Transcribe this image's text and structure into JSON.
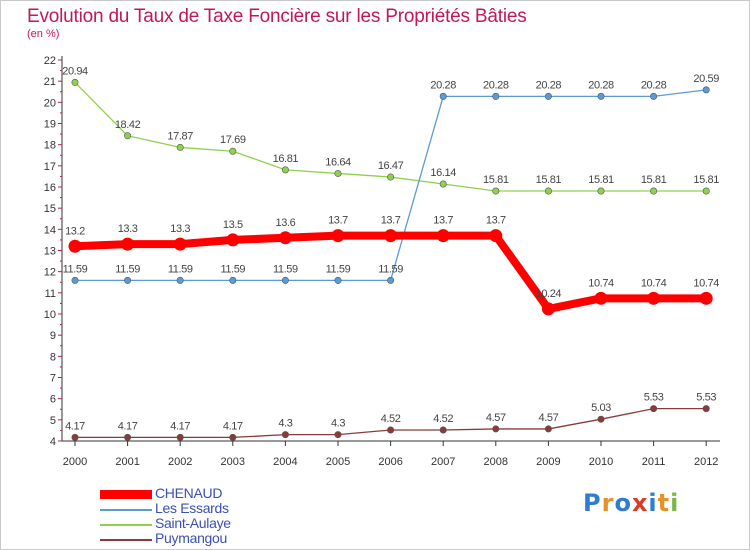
{
  "title": "Evolution du Taux de Taxe Foncière sur les Propriétés Bâties",
  "subtitle": "(en %)",
  "logo": {
    "text": "Proxiti",
    "letters": [
      "P",
      "r",
      "o",
      "x",
      "i",
      "t",
      "i"
    ],
    "colors": [
      "#2e7dd1",
      "#e8902a",
      "#2e7dd1",
      "#d93a2a",
      "#2e7dd1",
      "#e8902a",
      "#7ab648"
    ]
  },
  "chart_data": {
    "type": "line",
    "title": "Evolution du Taux de Taxe Foncière sur les Propriétés Bâties",
    "ylabel": "(en %)",
    "xlabel": "",
    "x": [
      "2000",
      "2001",
      "2002",
      "2003",
      "2004",
      "2005",
      "2006",
      "2007",
      "2008",
      "2009",
      "2010",
      "2011",
      "2012"
    ],
    "ylim": [
      4,
      22
    ],
    "yticks": [
      "4",
      "5",
      "6",
      "7",
      "8",
      "9",
      "10",
      "11",
      "12",
      "13",
      "14",
      "15",
      "16",
      "17",
      "18",
      "19",
      "20",
      "21",
      "22"
    ],
    "grid": false,
    "legend_position": "bottom-left",
    "series": [
      {
        "name": "CHENAUD",
        "color": "#ff0000",
        "width": "thick",
        "values": [
          13.2,
          13.3,
          13.3,
          13.5,
          13.6,
          13.7,
          13.7,
          13.7,
          13.7,
          10.24,
          10.74,
          10.74,
          10.74
        ],
        "labels": [
          "13.2",
          "13.3",
          "13.3",
          "13.5",
          "13.6",
          "13.7",
          "13.7",
          "13.7",
          "13.7",
          "10.24",
          "10.74",
          "10.74",
          "10.74"
        ]
      },
      {
        "name": "Les Essards",
        "color": "#5b9bd5",
        "width": "thin",
        "values": [
          11.59,
          11.59,
          11.59,
          11.59,
          11.59,
          11.59,
          11.59,
          20.28,
          20.28,
          20.28,
          20.28,
          20.28,
          20.59
        ],
        "labels": [
          "11.59",
          "11.59",
          "11.59",
          "11.59",
          "11.59",
          "11.59",
          "11.59",
          "20.28",
          "20.28",
          "20.28",
          "20.28",
          "20.28",
          "20.59"
        ]
      },
      {
        "name": "Saint-Aulaye",
        "color": "#8fd14f",
        "width": "thin",
        "values": [
          20.94,
          18.42,
          17.87,
          17.69,
          16.81,
          16.64,
          16.47,
          16.14,
          15.81,
          15.81,
          15.81,
          15.81,
          15.81
        ],
        "labels": [
          "20.94",
          "18.42",
          "17.87",
          "17.69",
          "16.81",
          "16.64",
          "16.47",
          "16.14",
          "15.81",
          "15.81",
          "15.81",
          "15.81",
          "15.81"
        ]
      },
      {
        "name": "Puymangou",
        "color": "#8b3a3a",
        "width": "thin",
        "values": [
          4.17,
          4.17,
          4.17,
          4.17,
          4.3,
          4.3,
          4.52,
          4.52,
          4.57,
          4.57,
          5.03,
          5.53,
          5.53
        ],
        "labels": [
          "4.17",
          "4.17",
          "4.17",
          "4.17",
          "4.3",
          "4.3",
          "4.52",
          "4.52",
          "4.57",
          "4.57",
          "5.03",
          "5.53",
          "5.53"
        ]
      }
    ]
  }
}
